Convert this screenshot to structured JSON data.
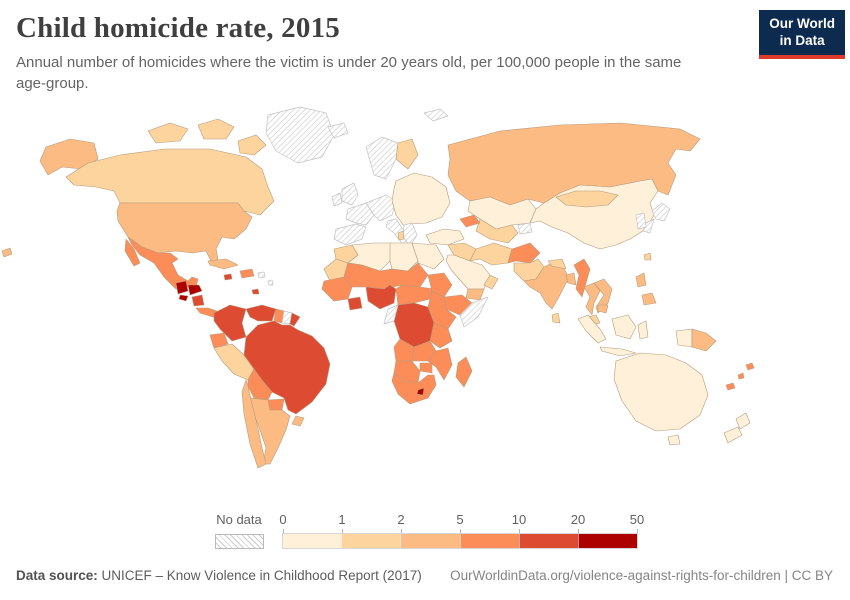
{
  "header": {
    "title": "Child homicide rate, 2015",
    "subtitle_line1": "Annual number of homicides where the victim is under 20 years old, per 100,000 people in the same",
    "subtitle_line2": "age-group."
  },
  "logo": {
    "line1": "Our World",
    "line2": "in Data",
    "bg_color": "#0d2a4f",
    "accent_color": "#dc3a2a"
  },
  "legend": {
    "no_data_label": "No data",
    "tick_labels": [
      "0",
      "1",
      "2",
      "5",
      "10",
      "20",
      "50"
    ],
    "bins": [
      {
        "range": "0-1",
        "color": "#fef0d9"
      },
      {
        "range": "1-2",
        "color": "#fdd49e"
      },
      {
        "range": "2-5",
        "color": "#fdbb84"
      },
      {
        "range": "5-10",
        "color": "#fc8d59"
      },
      {
        "range": "10-20",
        "color": "#dd4b33"
      },
      {
        "range": "20-50",
        "color": "#ad0000"
      }
    ]
  },
  "footer": {
    "source_label": "Data source:",
    "source_text": " UNICEF – Know Violence in Childhood Report (2017)",
    "link_text": "OurWorldinData.org/violence-against-rights-for-children | CC BY"
  },
  "chart_data": {
    "type": "choropleth-map",
    "title": "Child homicide rate, 2015",
    "year": 2015,
    "unit": "homicides of victims under 20 years old per 100,000 people in the same age-group",
    "legend_bins": [
      "0-1",
      "1-2",
      "2-5",
      "5-10",
      "10-20",
      "20-50",
      "no-data"
    ],
    "bin_colors": {
      "0-1": "#fef0d9",
      "1-2": "#fdd49e",
      "2-5": "#fdbb84",
      "5-10": "#fc8d59",
      "10-20": "#dd4b33",
      "20-50": "#ad0000",
      "no-data": "hatch"
    },
    "regions": {
      "greenland": "no-data",
      "iceland": "no-data",
      "svalbard": "no-data",
      "arctic-islands-west": "1-2",
      "arctic-islands-mid": "1-2",
      "arctic-islands-east": "1-2",
      "alaska": "2-5",
      "canada": "1-2",
      "usa": "2-5",
      "baja-california": "5-10",
      "mexico": "5-10",
      "guatemala": "20-50",
      "honduras": "20-50",
      "el-salvador": "20-50",
      "nicaragua": "10-20",
      "costa-rica-panama": "5-10",
      "cuba": "2-5",
      "jamaica": "10-20",
      "hispaniola": "5-10",
      "puerto-rico": "no-data",
      "lesser-antilles": "no-data",
      "trinidad": "10-20",
      "colombia": "10-20",
      "venezuela": "10-20",
      "guyana": "5-10",
      "suriname": "no-data",
      "french-guiana": "10-20",
      "ecuador": "5-10",
      "peru": "1-2",
      "brazil": "10-20",
      "bolivia": "5-10",
      "paraguay": "5-10",
      "uruguay": "2-5",
      "argentina": "2-5",
      "chile": "2-5",
      "norway-sweden": "no-data",
      "finland": "1-2",
      "uk": "no-data",
      "ireland": "no-data",
      "france": "no-data",
      "iberia": "no-data",
      "central-europe": "no-data",
      "italy": "no-data",
      "balkans": "no-data",
      "albania": "1-2",
      "eastern-europe": "0-1",
      "turkey": "0-1",
      "russia": "2-5",
      "kazakhstan": "0-1",
      "central-asia": "1-2",
      "kyrgyzstan-tajikistan": "no-data",
      "caucasus": "5-10",
      "syria-iraq": "1-2",
      "saudi-arabia": "0-1",
      "yemen": "2-5",
      "oman": "1-2",
      "iran": "1-2",
      "afghanistan": "5-10",
      "pakistan": "1-2",
      "morocco": "1-2",
      "mauritania-wsahara": "1-2",
      "algeria": "0-1",
      "libya": "0-1",
      "egypt": "0-1",
      "sahel": "5-10",
      "west-africa": "5-10",
      "ghana-cotedivoire": "10-20",
      "nigeria": "10-20",
      "cameroon-car": "5-10",
      "sudan": "5-10",
      "ethiopia": "5-10",
      "somalia": "no-data",
      "east-africa": "5-10",
      "drc": "10-20",
      "congo-gabon": "no-data",
      "tanzania": "5-10",
      "angola": "5-10",
      "zambia": "5-10",
      "mozambique-malawi": "5-10",
      "zimbabwe": "5-10",
      "namibia-botswana": "5-10",
      "south-africa": "5-10",
      "lesotho": "20-50",
      "madagascar": "5-10",
      "china": "0-1",
      "mongolia": "1-2",
      "india": "2-5",
      "nepal-bhutan": "1-2",
      "bangladesh": "2-5",
      "sri-lanka": "1-2",
      "myanmar": "5-10",
      "thailand": "2-5",
      "laos-vietnam": "2-5",
      "cambodia": "2-5",
      "malaysia": "1-2",
      "sumatra": "0-1",
      "java": "0-1",
      "borneo": "0-1",
      "sulawesi": "0-1",
      "west-papua": "0-1",
      "papua-new-guinea": "2-5",
      "philippines-luzon": "2-5",
      "philippines-mindanao": "2-5",
      "taiwan": "1-2",
      "japan-north": "no-data",
      "japan-south": "no-data",
      "korea": "no-data",
      "australia": "0-1",
      "tasmania": "0-1",
      "new-zealand-north": "0-1",
      "new-zealand-south": "0-1",
      "fiji": "5-10",
      "vanuatu": "5-10",
      "new-caledonia": "5-10",
      "chukotka-wrap": "2-5"
    }
  }
}
